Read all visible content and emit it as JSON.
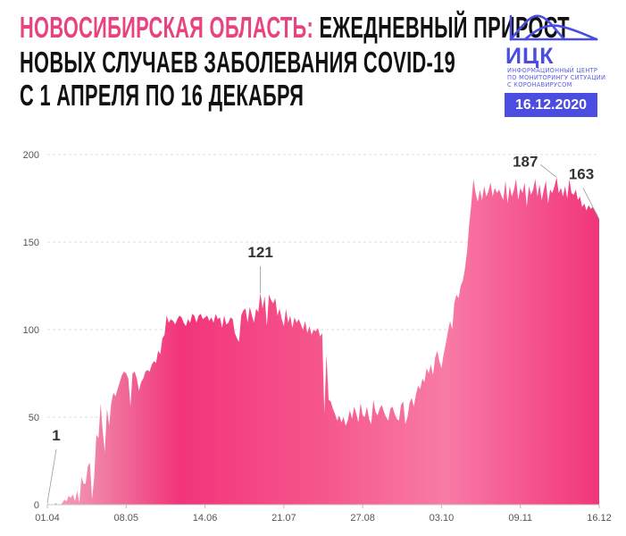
{
  "header": {
    "title_highlight": "НОВОСИБИРСКАЯ ОБЛАСТЬ:",
    "title_line1_rest": " ЕЖЕДНЕВНЫЙ ПРИРОСТ",
    "title_line2": "НОВЫХ СЛУЧАЕВ ЗАБОЛЕВАНИЯ COVID-19",
    "title_line3": "С 1 АПРЕЛЯ ПО 16 ДЕКАБРЯ"
  },
  "logo": {
    "name": "ИЦК",
    "subtitle_lines": [
      "ИНФОРМАЦИОННЫЙ ЦЕНТР",
      "ПО МОНИТОРИНГУ СИТУАЦИИ",
      "С КОРОНАВИРУСОМ"
    ],
    "date_badge": "16.12.2020"
  },
  "colors": {
    "accent_pink": "#e8437f",
    "brand_blue": "#4a4de0",
    "fill_dark": "#f2357a",
    "fill_light": "#f77ba6"
  },
  "chart_data": {
    "type": "area",
    "title": "",
    "xlabel": "",
    "ylabel": "",
    "ylim": [
      0,
      200
    ],
    "grid": true,
    "y_ticks": [
      "0",
      "50",
      "100",
      "150",
      "200"
    ],
    "x_tick_labels": [
      "01.04",
      "08.05",
      "14.06",
      "21.07",
      "27.08",
      "03.10",
      "09.11",
      "16.12"
    ],
    "x_tick_days": [
      0,
      37,
      74,
      111,
      148,
      185,
      222,
      259
    ],
    "x_start": "01.04",
    "x_end": "16.12",
    "annotations": [
      {
        "label": "1",
        "day": 0,
        "value": 1
      },
      {
        "label": "121",
        "day": 100,
        "value": 121
      },
      {
        "label": "187",
        "day": 239,
        "value": 187
      },
      {
        "label": "163",
        "day": 259,
        "value": 163
      }
    ],
    "values": [
      1,
      0,
      0,
      0,
      1,
      0,
      0,
      1,
      3,
      2,
      5,
      4,
      6,
      2,
      8,
      1,
      16,
      12,
      12,
      22,
      24,
      3,
      16,
      40,
      38,
      58,
      42,
      30,
      55,
      45,
      58,
      64,
      62,
      66,
      70,
      74,
      76,
      75,
      72,
      56,
      75,
      76,
      72,
      65,
      70,
      72,
      76,
      77,
      76,
      80,
      82,
      81,
      88,
      86,
      95,
      97,
      108,
      104,
      106,
      105,
      103,
      106,
      108,
      107,
      104,
      102,
      106,
      104,
      109,
      108,
      104,
      108,
      109,
      106,
      107,
      108,
      105,
      107,
      104,
      109,
      106,
      107,
      101,
      108,
      103,
      104,
      107,
      106,
      98,
      95,
      93,
      108,
      111,
      112,
      104,
      113,
      108,
      104,
      112,
      110,
      121,
      112,
      119,
      102,
      120,
      117,
      115,
      118,
      108,
      112,
      106,
      102,
      112,
      104,
      108,
      101,
      107,
      104,
      106,
      103,
      100,
      105,
      98,
      102,
      97,
      100,
      99,
      101,
      96,
      98,
      52,
      86,
      60,
      59,
      55,
      52,
      48,
      51,
      47,
      50,
      45,
      48,
      54,
      49,
      56,
      52,
      47,
      58,
      51,
      50,
      56,
      49,
      46,
      60,
      53,
      51,
      55,
      57,
      53,
      50,
      48,
      55,
      56,
      52,
      49,
      48,
      57,
      59,
      46,
      50,
      58,
      61,
      56,
      63,
      68,
      66,
      72,
      70,
      78,
      75,
      80,
      74,
      84,
      88,
      82,
      78,
      86,
      92,
      99,
      105,
      100,
      115,
      120,
      118,
      125,
      128,
      135,
      145,
      160,
      172,
      186,
      178,
      173,
      180,
      174,
      182,
      176,
      179,
      184,
      176,
      181,
      178,
      180,
      177,
      174,
      185,
      172,
      182,
      176,
      180,
      186,
      174,
      181,
      178,
      184,
      170,
      182,
      177,
      180,
      186,
      176,
      183,
      174,
      180,
      185,
      172,
      180,
      178,
      182,
      187,
      178,
      181,
      176,
      182,
      175,
      186,
      178,
      177,
      180,
      174,
      176,
      170,
      172,
      168,
      171,
      169,
      170,
      168,
      166,
      163
    ]
  }
}
